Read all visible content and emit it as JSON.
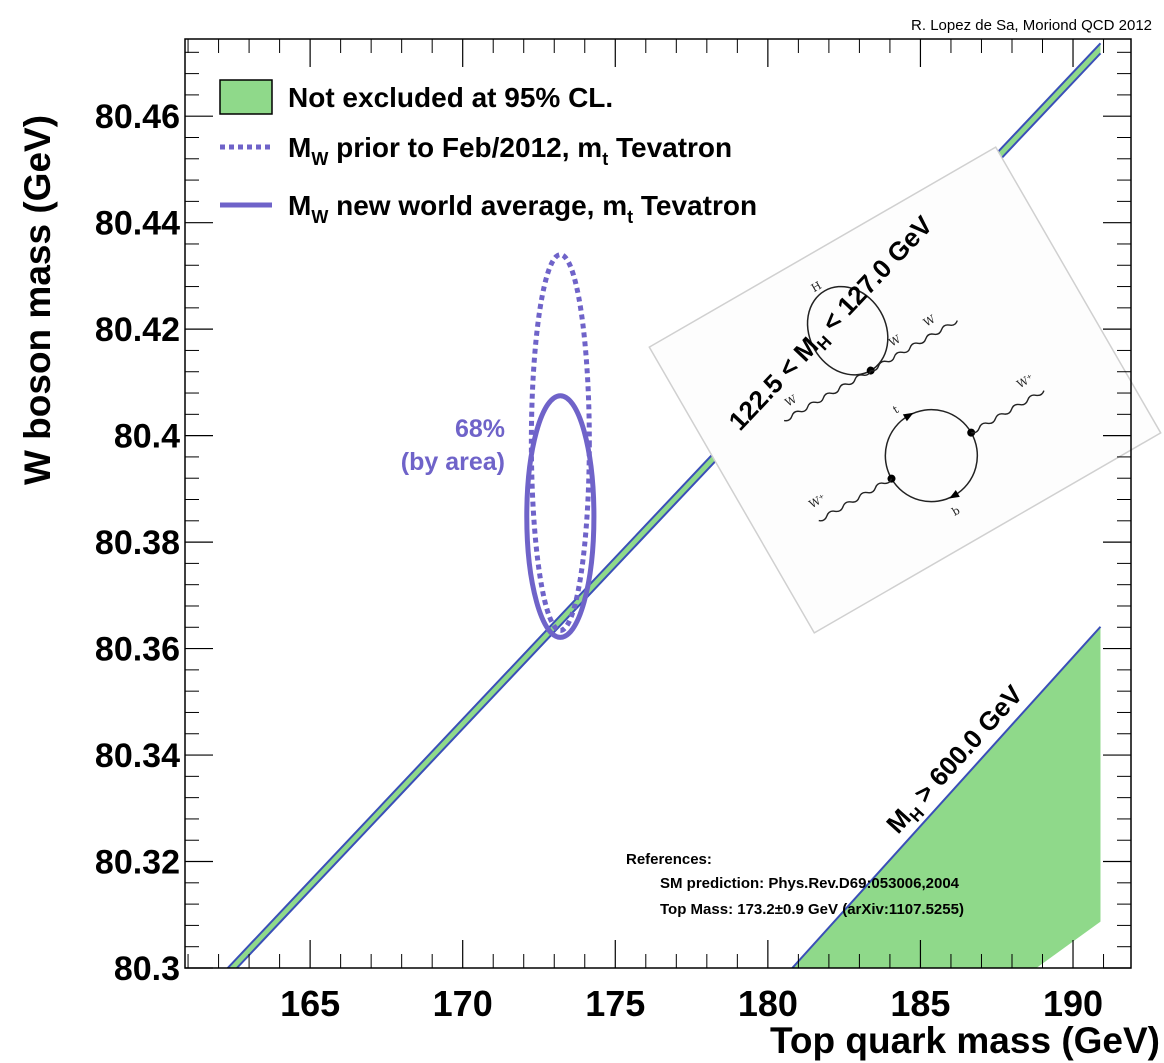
{
  "chart_data": {
    "type": "line",
    "credit": "R. Lopez de Sa, Moriond QCD 2012",
    "xlabel": "Top quark mass (GeV)",
    "ylabel": "W boson mass (GeV)",
    "xlim": [
      160.9,
      191.9
    ],
    "ylim": [
      80.3,
      80.4745
    ],
    "x_ticks": [
      165,
      170,
      175,
      180,
      185,
      190
    ],
    "x_tick_labels": [
      "165",
      "170",
      "175",
      "180",
      "185",
      "190"
    ],
    "y_ticks": [
      80.3,
      80.32,
      80.34,
      80.36,
      80.38,
      80.4,
      80.42,
      80.44,
      80.46
    ],
    "y_tick_labels": [
      "80.3",
      "80.32",
      "80.34",
      "80.36",
      "80.38",
      "80.4",
      "80.42",
      "80.44",
      "80.46"
    ],
    "grid": false,
    "colors": {
      "band_fill": "#8fd98a",
      "band_edge": "#3a4fb8",
      "contour": "#6f63c9"
    },
    "legend": {
      "position": "top-left",
      "entries": [
        {
          "style": "box",
          "main": "Not excluded at 95% CL.",
          "sub": "",
          "tail": ""
        },
        {
          "style": "dashed",
          "main": "M",
          "sub": "W",
          "tail": " prior to Feb/2012, m",
          "sub2": "t",
          "tail2": " Tevatron"
        },
        {
          "style": "solid",
          "main": "M",
          "sub": "W",
          "tail": " new world average, m",
          "sub2": "t",
          "tail2": " Tevatron"
        }
      ]
    },
    "bands": [
      {
        "label_pre": "122.5 < M",
        "label_sub": "H",
        "label_post": " < 127.0 GeV",
        "lower": [
          [
            162.6,
            80.3
          ],
          [
            190.9,
            80.4718
          ]
        ],
        "upper": [
          [
            162.3,
            80.3
          ],
          [
            190.9,
            80.4737
          ]
        ]
      },
      {
        "label_pre": "M",
        "label_sub": "H",
        "label_post": " > 600.0 GeV",
        "polygon": [
          [
            180.8,
            80.3
          ],
          [
            190.9,
            80.3641
          ],
          [
            190.9,
            80.3087
          ],
          [
            188.8,
            80.3
          ]
        ]
      }
    ],
    "series": [
      {
        "name": "M_W prior to Feb/2012, m_t Tevatron",
        "style": "dashed",
        "center": [
          173.2,
          80.3987
        ],
        "half_width": 0.95,
        "half_height": 0.0353
      },
      {
        "name": "M_W new world average, m_t Tevatron",
        "style": "solid",
        "center": [
          173.2,
          80.3848
        ],
        "half_width": 1.1,
        "half_height": 0.0227
      }
    ],
    "annotations": {
      "cl_line1": "68%",
      "cl_line2": "(by area)",
      "refs_title": "References:",
      "ref1": "SM prediction: Phys.Rev.D69:053006,2004",
      "ref2": "Top Mass: 173.2±0.9 GeV (arXiv:1107.5255)"
    },
    "inset": {
      "labels_top": [
        "H",
        "W",
        "W",
        "W"
      ],
      "labels_bottom": [
        "t",
        "W⁺",
        "b",
        "W⁺"
      ]
    }
  }
}
